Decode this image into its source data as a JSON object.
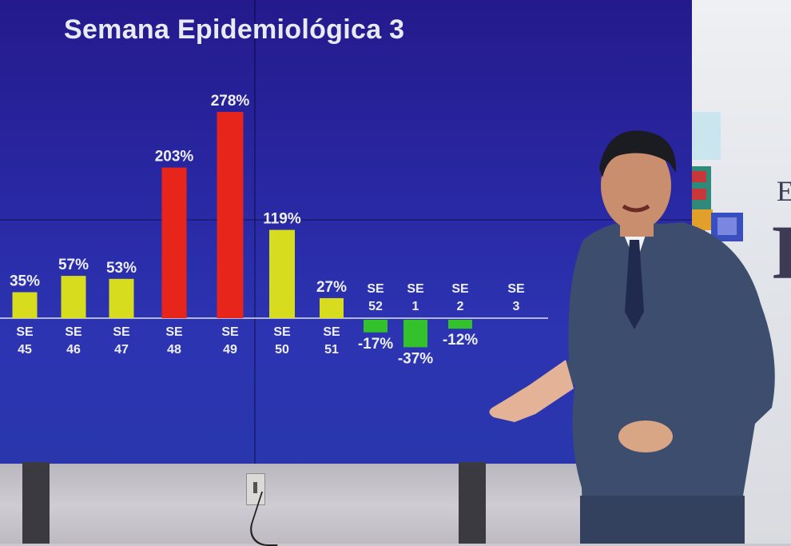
{
  "screen": {
    "title": "Semana Epidemiológica 3"
  },
  "backdrop": {
    "letters": [
      "E",
      "F"
    ]
  },
  "chart_data": {
    "type": "bar",
    "title": "Semana Epidemiológica 3",
    "categories": [
      {
        "line1": "SE",
        "line2": "45"
      },
      {
        "line1": "SE",
        "line2": "46"
      },
      {
        "line1": "SE",
        "line2": "47"
      },
      {
        "line1": "SE",
        "line2": "48"
      },
      {
        "line1": "SE",
        "line2": "49"
      },
      {
        "line1": "SE",
        "line2": "50"
      },
      {
        "line1": "SE",
        "line2": "51"
      },
      {
        "line1": "SE",
        "line2": "52"
      },
      {
        "line1": "SE",
        "line2": "1"
      },
      {
        "line1": "SE",
        "line2": "2"
      },
      {
        "line1": "SE",
        "line2": "3"
      }
    ],
    "values": [
      35,
      57,
      53,
      203,
      278,
      119,
      27,
      -17,
      -37,
      -12,
      null
    ],
    "value_labels": [
      "35%",
      "57%",
      "53%",
      "203%",
      "278%",
      "119%",
      "27%",
      "-17%",
      "-37%",
      "-12%",
      ""
    ],
    "value_unit": "%",
    "colors": {
      "yellow": "#d8dc1e",
      "red": "#e8251a",
      "green": "#33c22c"
    },
    "bar_colors": [
      "yellow",
      "yellow",
      "yellow",
      "red",
      "red",
      "yellow",
      "yellow",
      "green",
      "green",
      "green",
      null
    ],
    "baseline": 0,
    "grid": false,
    "legend": "none"
  }
}
